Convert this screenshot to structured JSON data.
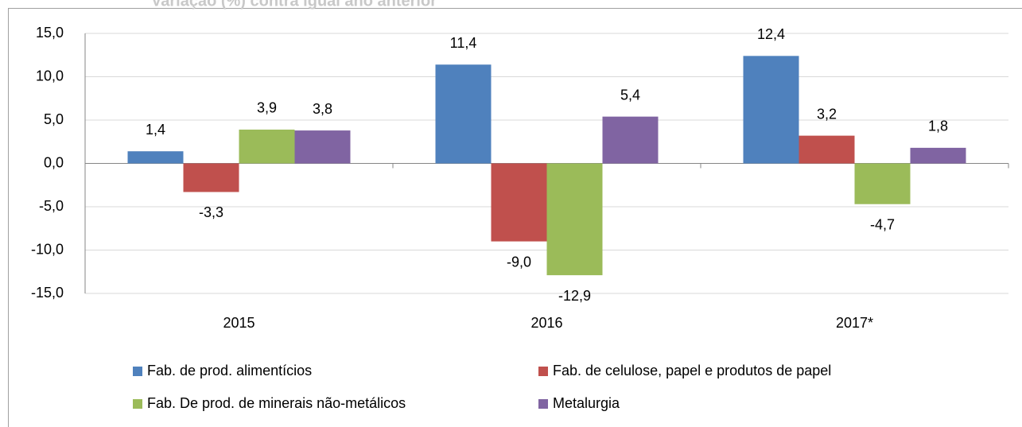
{
  "chart_data": {
    "type": "bar",
    "title": "Variação (%) contra igual ano anterior",
    "categories": [
      "2015",
      "2016",
      "2017*"
    ],
    "series": [
      {
        "name": "Fab. de prod. alimentícios",
        "color": "#4f81bd",
        "values": [
          1.4,
          11.4,
          12.4
        ],
        "value_labels": [
          "1,4",
          "11,4",
          "12,4"
        ]
      },
      {
        "name": "Fab. de celulose, papel e produtos de papel",
        "color": "#c0504d",
        "values": [
          -3.3,
          -9.0,
          3.2
        ],
        "value_labels": [
          "-3,3",
          "-9,0",
          "3,2"
        ]
      },
      {
        "name": "Fab. De prod. de minerais não-metálicos",
        "color": "#9bbb59",
        "values": [
          3.9,
          -12.9,
          -4.7
        ],
        "value_labels": [
          "3,9",
          "-12,9",
          "-4,7"
        ]
      },
      {
        "name": "Metalurgia",
        "color": "#8064a2",
        "values": [
          3.8,
          5.4,
          1.8
        ],
        "value_labels": [
          "3,8",
          "5,4",
          "1,8"
        ]
      }
    ],
    "ylim": [
      -15,
      15
    ],
    "yticks": [
      {
        "value": -15,
        "label": "-15,0"
      },
      {
        "value": -10,
        "label": "-10,0"
      },
      {
        "value": -5,
        "label": "-5,0"
      },
      {
        "value": 0,
        "label": "0,0"
      },
      {
        "value": 5,
        "label": "5,0"
      },
      {
        "value": 10,
        "label": "10,0"
      },
      {
        "value": 15,
        "label": "15,0"
      }
    ],
    "grid": true,
    "legend": "bottom"
  }
}
